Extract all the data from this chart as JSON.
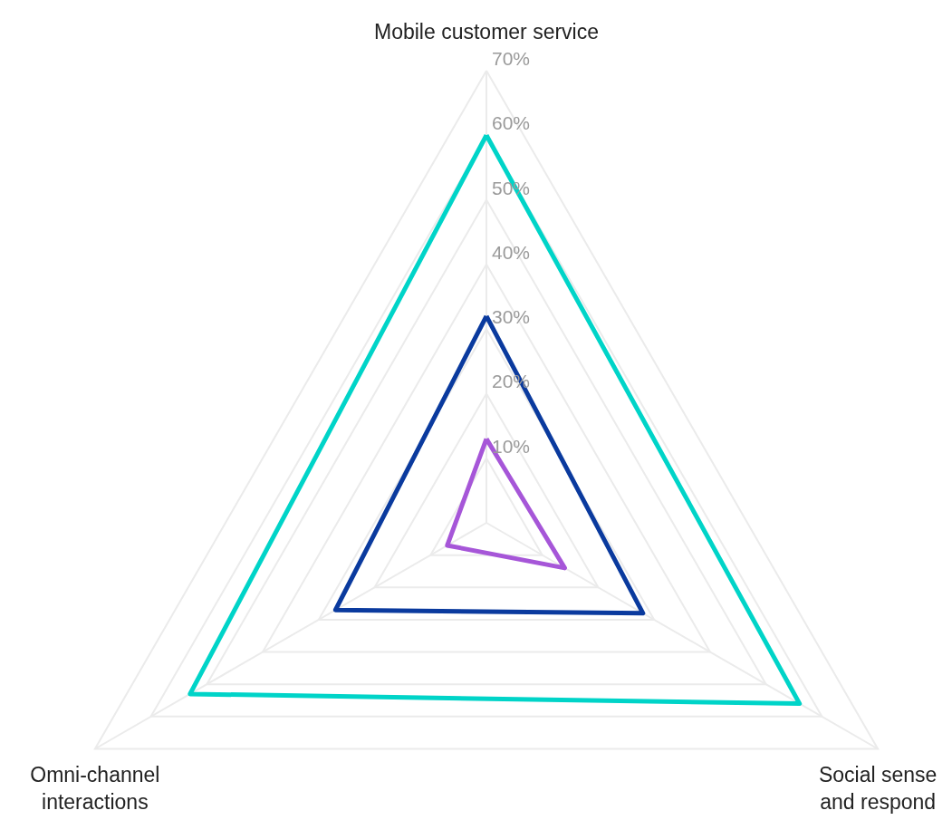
{
  "chart_data": {
    "type": "radar",
    "categories": [
      "Mobile customer service",
      "Social sense\nand respond",
      "Omni-channel\ninteractions"
    ],
    "ylim": [
      0,
      70
    ],
    "yticks": [
      {
        "value": 10,
        "label": "10%"
      },
      {
        "value": 20,
        "label": "20%"
      },
      {
        "value": 30,
        "label": "30%"
      },
      {
        "value": 40,
        "label": "40%"
      },
      {
        "value": 50,
        "label": "50%"
      },
      {
        "value": 60,
        "label": "60%"
      },
      {
        "value": 70,
        "label": "70%"
      }
    ],
    "grid": true,
    "series": [
      {
        "color": "#00d4c8",
        "values": [
          60,
          56,
          53
        ]
      },
      {
        "color": "#0a3a9e",
        "values": [
          32,
          28,
          27
        ]
      },
      {
        "color": "#a656d8",
        "values": [
          13,
          14,
          7
        ]
      }
    ]
  }
}
